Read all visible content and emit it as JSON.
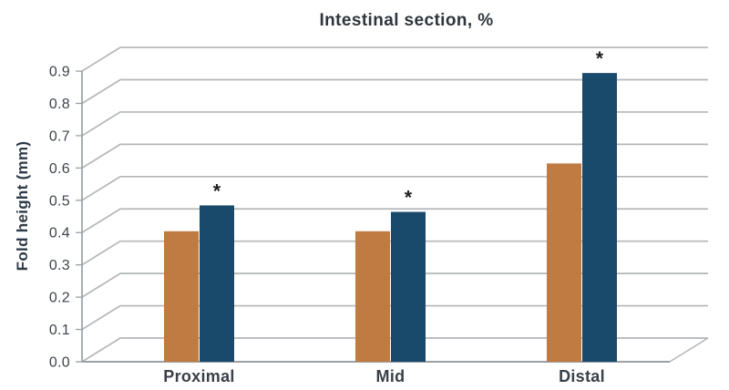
{
  "chart_data": {
    "type": "bar",
    "style": "pseudo-3d-clustered-column",
    "title": "Intestinal section, %",
    "ylabel": "Fold height (mm)",
    "xlabel": "",
    "categories": [
      "Proximal",
      "Mid",
      "Distal"
    ],
    "series": [
      {
        "name": "orange-series",
        "color": "#c07b42",
        "values": [
          0.39,
          0.39,
          0.6
        ],
        "significance_markers": [
          "",
          "",
          ""
        ]
      },
      {
        "name": "navy-series",
        "color": "#1a4a6b",
        "values": [
          0.47,
          0.45,
          0.88
        ],
        "significance_markers": [
          "*",
          "*",
          "*"
        ]
      }
    ],
    "ylim": [
      0.0,
      0.9
    ],
    "ytick_step": 0.1,
    "yticks": [
      "0.0",
      "0.1",
      "0.2",
      "0.3",
      "0.4",
      "0.5",
      "0.6",
      "0.7",
      "0.8",
      "0.9"
    ],
    "grid": true,
    "legend": "none",
    "colors": {
      "gridline": "#b3b6b9",
      "axis": "#9aa0a4",
      "title_text": "#2f353c",
      "tick_text": "#3e444c",
      "category_text": "#3a4047",
      "marker_text": "#1d1d1d",
      "background": "#ffffff"
    }
  }
}
